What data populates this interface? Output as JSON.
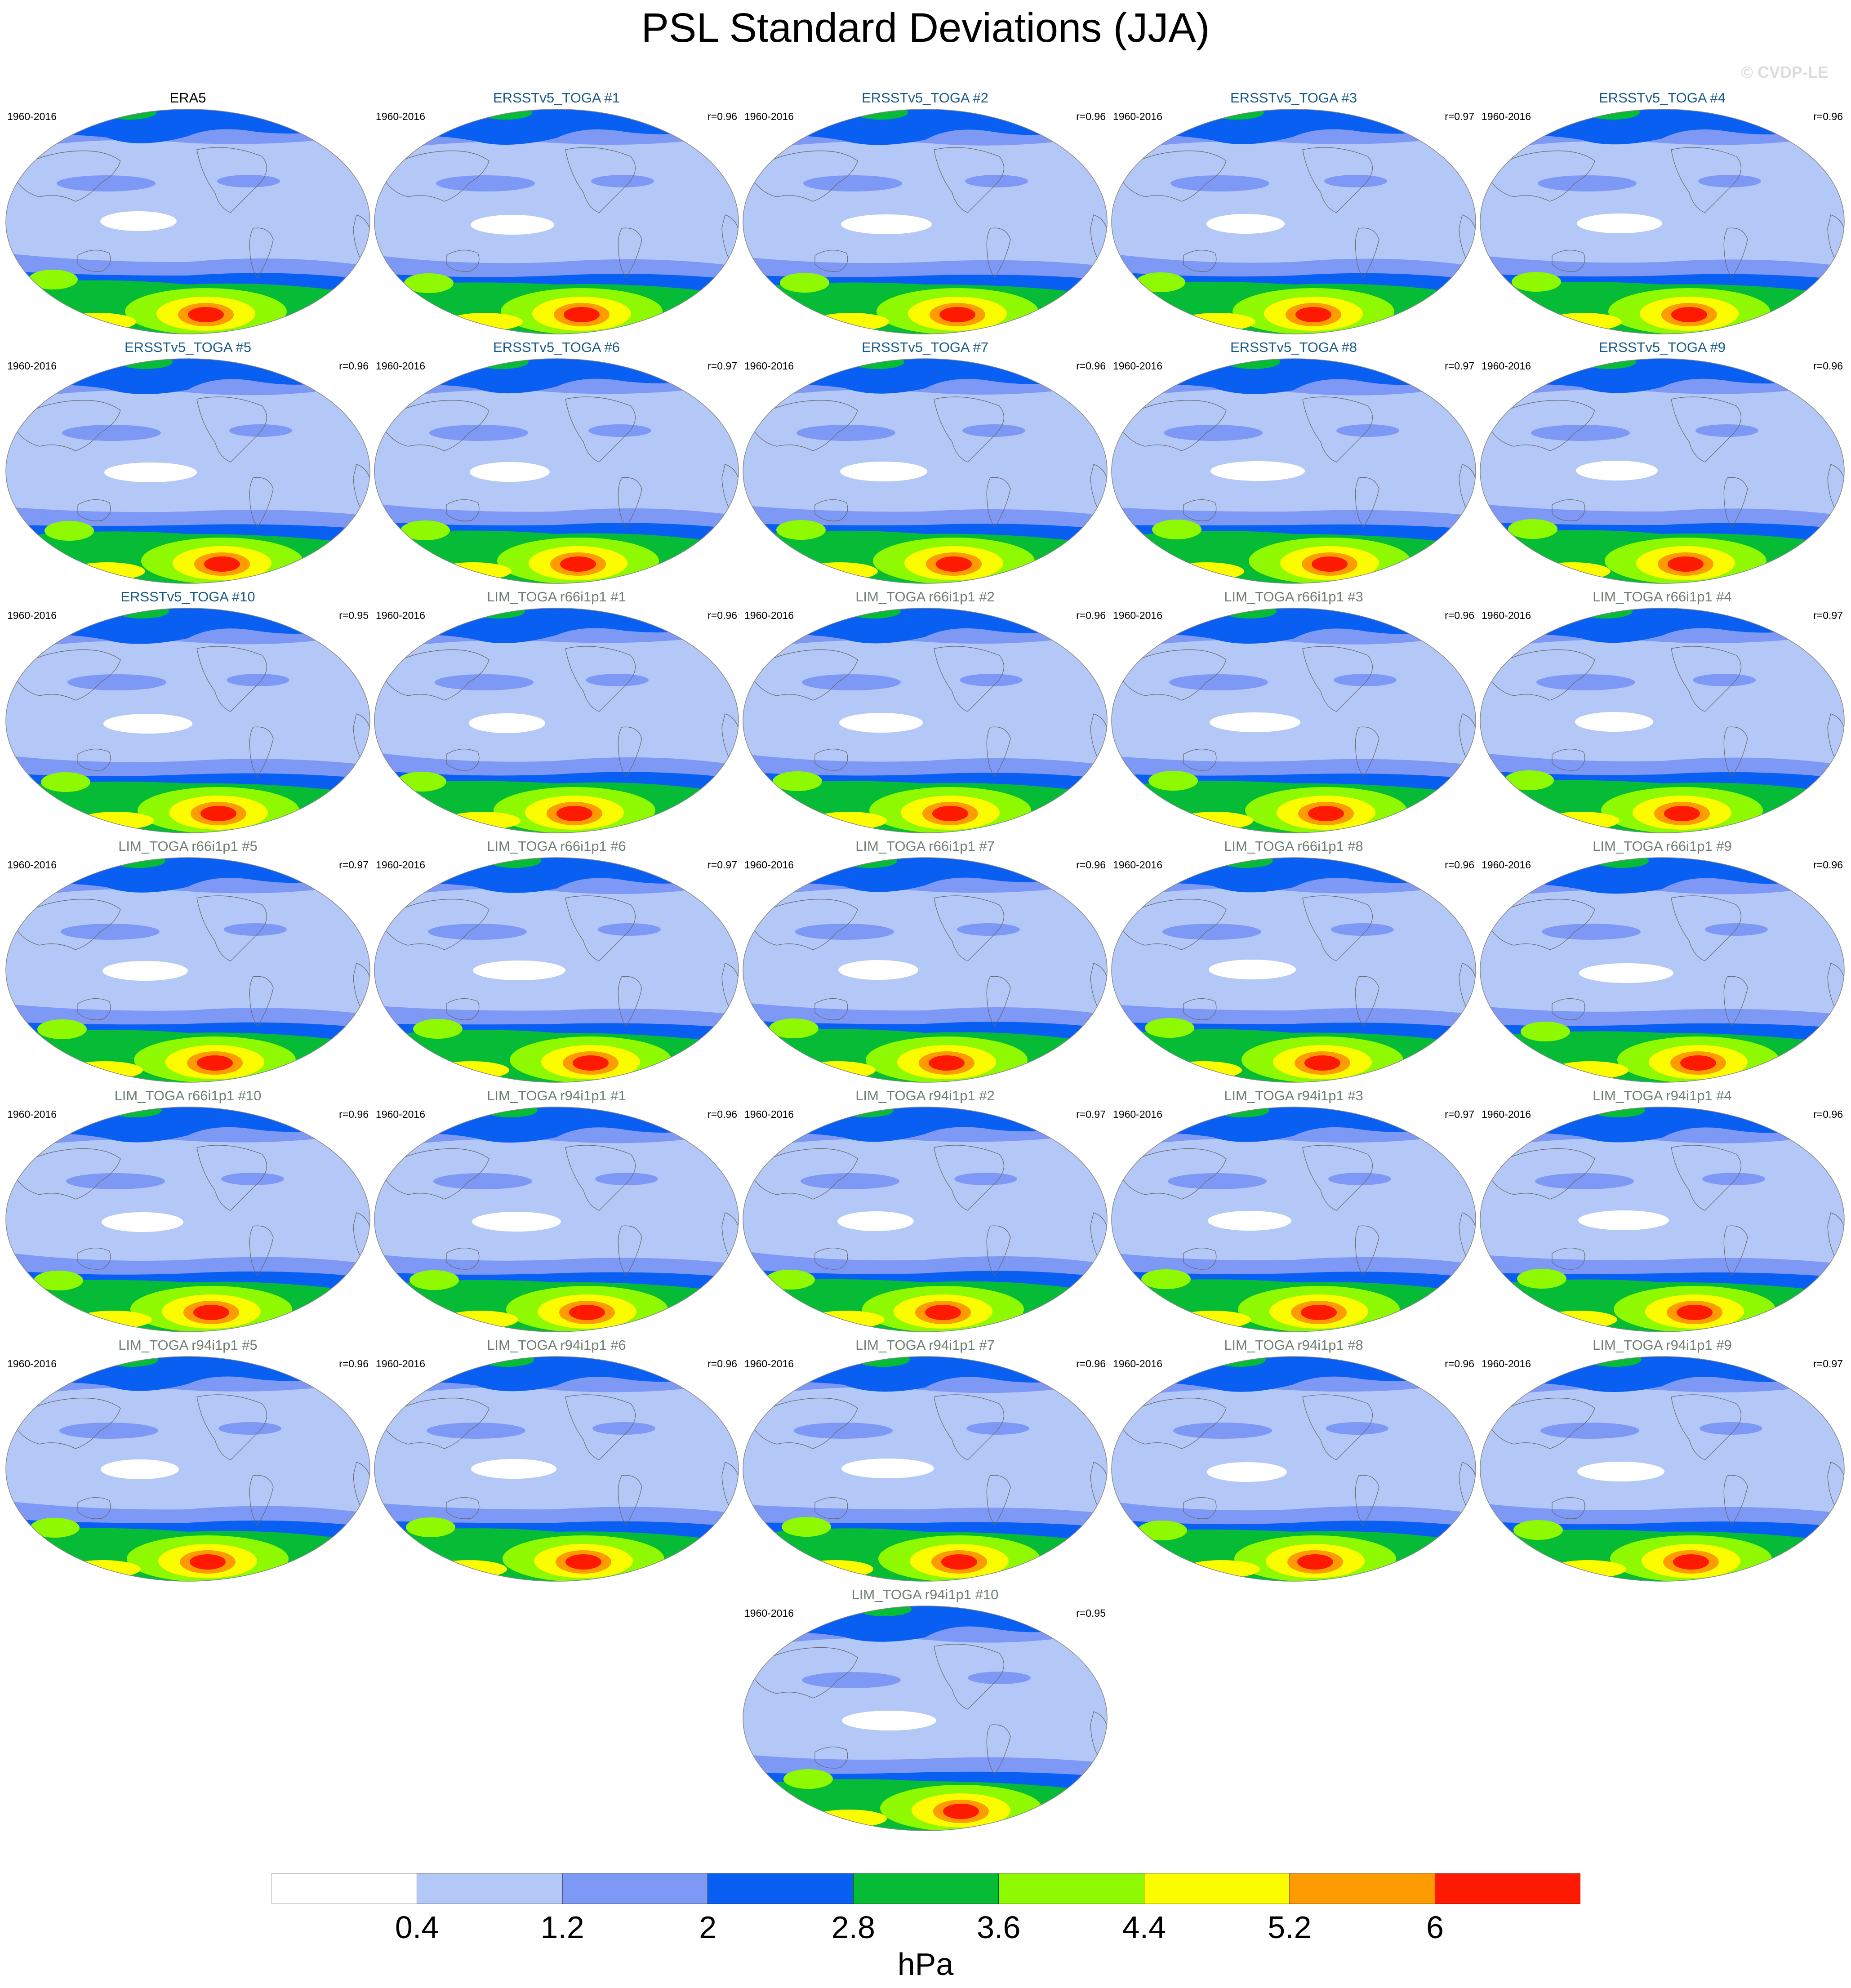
{
  "title": "PSL Standard Deviations (JJA)",
  "watermark": "© CVDP-LE",
  "colors": {
    "levels": [
      "#ffffff",
      "#b4c8f8",
      "#7e99f5",
      "#0a5ff3",
      "#06bb35",
      "#8ef900",
      "#fbfc00",
      "#fd9b00",
      "#fd1a00"
    ],
    "title_obs": "#000000",
    "title_ersst": "#1a5a8a",
    "title_lim": "#6e7e72",
    "continent_line": "#666666"
  },
  "panels": [
    {
      "title": "ERA5",
      "years": "1960-2016",
      "r": "",
      "group": "obs"
    },
    {
      "title": "ERSSTv5_TOGA #1",
      "years": "1960-2016",
      "r": "r=0.96",
      "group": "ersst"
    },
    {
      "title": "ERSSTv5_TOGA #2",
      "years": "1960-2016",
      "r": "r=0.96",
      "group": "ersst"
    },
    {
      "title": "ERSSTv5_TOGA #3",
      "years": "1960-2016",
      "r": "r=0.97",
      "group": "ersst"
    },
    {
      "title": "ERSSTv5_TOGA #4",
      "years": "1960-2016",
      "r": "r=0.96",
      "group": "ersst"
    },
    {
      "title": "ERSSTv5_TOGA #5",
      "years": "1960-2016",
      "r": "r=0.96",
      "group": "ersst"
    },
    {
      "title": "ERSSTv5_TOGA #6",
      "years": "1960-2016",
      "r": "r=0.97",
      "group": "ersst"
    },
    {
      "title": "ERSSTv5_TOGA #7",
      "years": "1960-2016",
      "r": "r=0.96",
      "group": "ersst"
    },
    {
      "title": "ERSSTv5_TOGA #8",
      "years": "1960-2016",
      "r": "r=0.97",
      "group": "ersst"
    },
    {
      "title": "ERSSTv5_TOGA #9",
      "years": "1960-2016",
      "r": "r=0.96",
      "group": "ersst"
    },
    {
      "title": "ERSSTv5_TOGA #10",
      "years": "1960-2016",
      "r": "r=0.95",
      "group": "ersst"
    },
    {
      "title": "LIM_TOGA r66i1p1 #1",
      "years": "1960-2016",
      "r": "r=0.96",
      "group": "lim"
    },
    {
      "title": "LIM_TOGA r66i1p1 #2",
      "years": "1960-2016",
      "r": "r=0.96",
      "group": "lim"
    },
    {
      "title": "LIM_TOGA r66i1p1 #3",
      "years": "1960-2016",
      "r": "r=0.96",
      "group": "lim"
    },
    {
      "title": "LIM_TOGA r66i1p1 #4",
      "years": "1960-2016",
      "r": "r=0.97",
      "group": "lim"
    },
    {
      "title": "LIM_TOGA r66i1p1 #5",
      "years": "1960-2016",
      "r": "r=0.97",
      "group": "lim"
    },
    {
      "title": "LIM_TOGA r66i1p1 #6",
      "years": "1960-2016",
      "r": "r=0.97",
      "group": "lim"
    },
    {
      "title": "LIM_TOGA r66i1p1 #7",
      "years": "1960-2016",
      "r": "r=0.96",
      "group": "lim"
    },
    {
      "title": "LIM_TOGA r66i1p1 #8",
      "years": "1960-2016",
      "r": "r=0.96",
      "group": "lim"
    },
    {
      "title": "LIM_TOGA r66i1p1 #9",
      "years": "1960-2016",
      "r": "r=0.96",
      "group": "lim"
    },
    {
      "title": "LIM_TOGA r66i1p1 #10",
      "years": "1960-2016",
      "r": "r=0.96",
      "group": "lim"
    },
    {
      "title": "LIM_TOGA r94i1p1 #1",
      "years": "1960-2016",
      "r": "r=0.96",
      "group": "lim"
    },
    {
      "title": "LIM_TOGA r94i1p1 #2",
      "years": "1960-2016",
      "r": "r=0.97",
      "group": "lim"
    },
    {
      "title": "LIM_TOGA r94i1p1 #3",
      "years": "1960-2016",
      "r": "r=0.97",
      "group": "lim"
    },
    {
      "title": "LIM_TOGA r94i1p1 #4",
      "years": "1960-2016",
      "r": "r=0.96",
      "group": "lim"
    },
    {
      "title": "LIM_TOGA r94i1p1 #5",
      "years": "1960-2016",
      "r": "r=0.96",
      "group": "lim"
    },
    {
      "title": "LIM_TOGA r94i1p1 #6",
      "years": "1960-2016",
      "r": "r=0.96",
      "group": "lim"
    },
    {
      "title": "LIM_TOGA r94i1p1 #7",
      "years": "1960-2016",
      "r": "r=0.96",
      "group": "lim"
    },
    {
      "title": "LIM_TOGA r94i1p1 #8",
      "years": "1960-2016",
      "r": "r=0.96",
      "group": "lim"
    },
    {
      "title": "LIM_TOGA r94i1p1 #9",
      "years": "1960-2016",
      "r": "r=0.97",
      "group": "lim"
    },
    {
      "title": "LIM_TOGA r94i1p1 #10",
      "years": "1960-2016",
      "r": "r=0.95",
      "group": "lim"
    }
  ],
  "colorbar": {
    "ticks": [
      "0.4",
      "1.2",
      "2",
      "2.8",
      "3.6",
      "4.4",
      "5.2",
      "6"
    ],
    "units": "hPa"
  }
}
